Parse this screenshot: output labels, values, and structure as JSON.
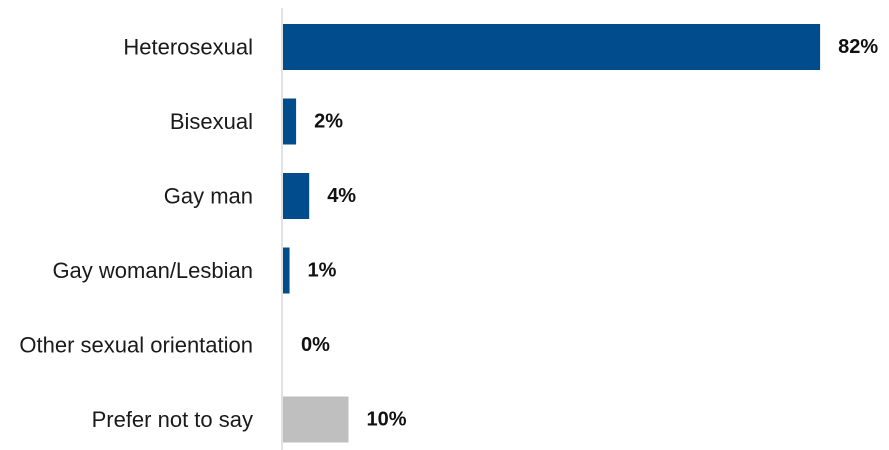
{
  "chart_data": {
    "type": "bar",
    "orientation": "horizontal",
    "categories": [
      "Heterosexual",
      "Bisexual",
      "Gay man",
      "Gay woman/Lesbian",
      "Other sexual orientation",
      "Prefer not to say"
    ],
    "values": [
      82,
      2,
      4,
      1,
      0,
      10
    ],
    "value_labels": [
      "82%",
      "2%",
      "4%",
      "1%",
      "0%",
      "10%"
    ],
    "unit": "%",
    "xlim": [
      0,
      100
    ],
    "grid": false,
    "legend": "none",
    "colors": [
      "#004c8c",
      "#004c8c",
      "#004c8c",
      "#004c8c",
      "#004c8c",
      "#bfbfbf"
    ]
  }
}
